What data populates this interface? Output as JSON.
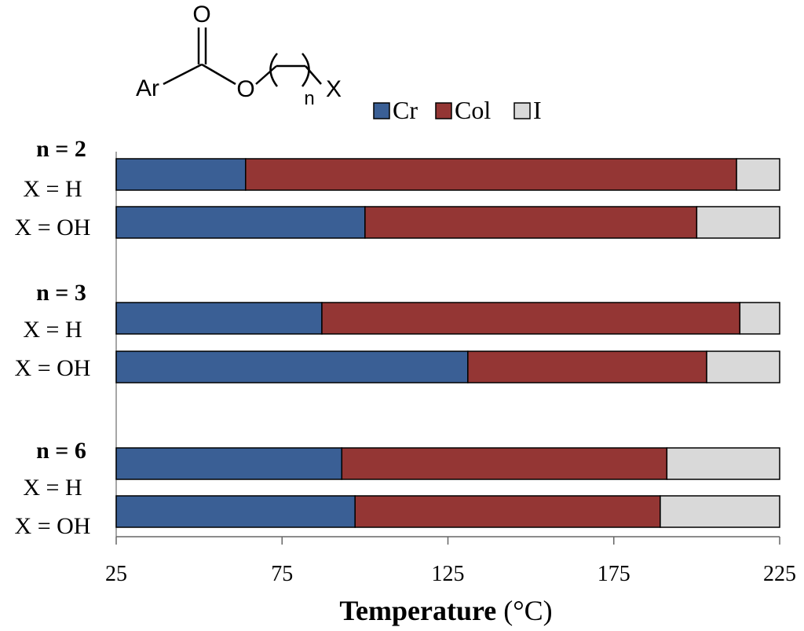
{
  "chart_data": {
    "type": "bar",
    "orientation": "horizontal",
    "stacking": "range",
    "xlabel_bold": "Temperature",
    "xlabel_unit": " (°C)",
    "xlim": [
      25,
      225
    ],
    "xticks": [
      "25",
      "75",
      "125",
      "175",
      "225"
    ],
    "legend": [
      {
        "name": "Cr",
        "color": "#3a5f95"
      },
      {
        "name": "Col",
        "color": "#943634"
      },
      {
        "name": "I",
        "color": "#d9d9d9"
      }
    ],
    "groups": [
      {
        "header": "n = 2",
        "rows": [
          {
            "label": "X = H",
            "segments": [
              25,
              64,
              212,
              225
            ]
          },
          {
            "label": "X = OH",
            "segments": [
              25,
              100,
              200,
              225
            ]
          }
        ]
      },
      {
        "header": "n = 3",
        "rows": [
          {
            "label": "X = H",
            "segments": [
              25,
              87,
              213,
              225
            ]
          },
          {
            "label": "X = OH",
            "segments": [
              25,
              131,
              203,
              225
            ]
          }
        ]
      },
      {
        "header": "n = 6",
        "rows": [
          {
            "label": "X = H",
            "segments": [
              25,
              93,
              191,
              225
            ]
          },
          {
            "label": "X = OH",
            "segments": [
              25,
              97,
              189,
              225
            ]
          }
        ]
      }
    ]
  },
  "structure": {
    "carbonyl_o": "O",
    "aryl": "Ar",
    "ester_o": "O",
    "subscript": "n",
    "end_group": "X"
  }
}
